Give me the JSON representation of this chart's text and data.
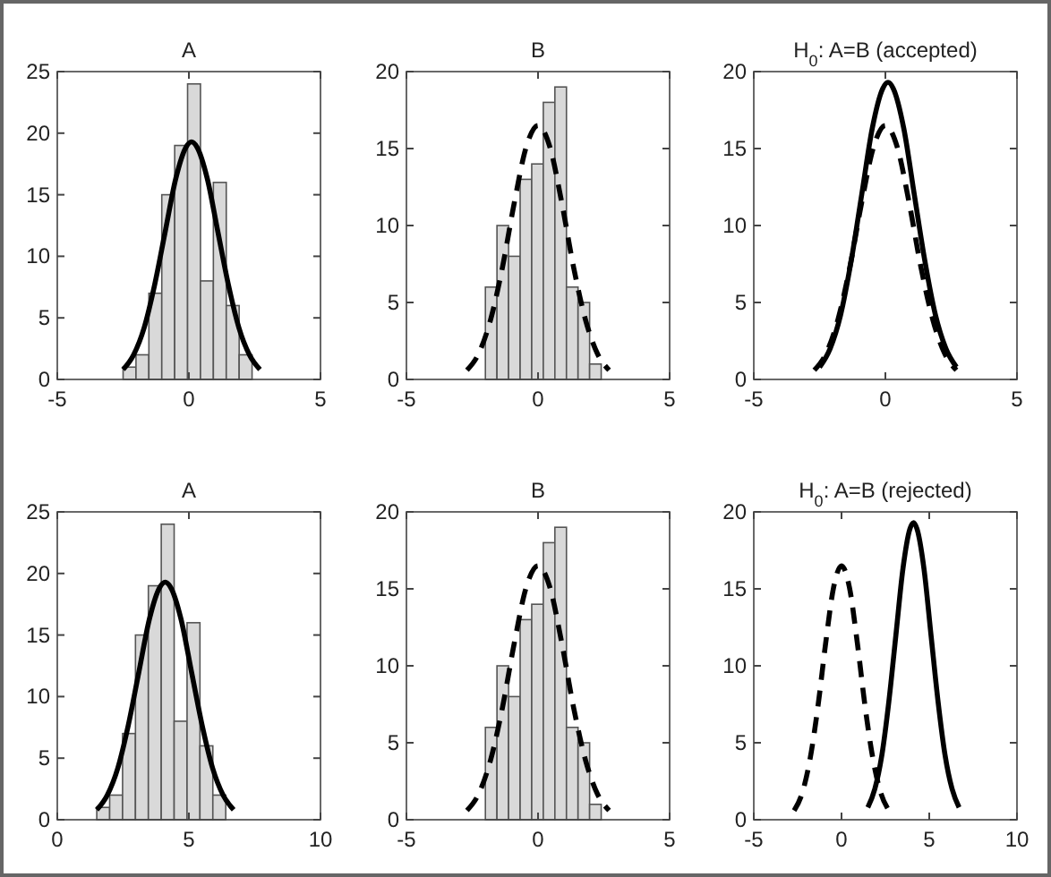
{
  "chart_data": [
    {
      "type": "histogram",
      "title": "A",
      "xlim": [
        -5,
        5
      ],
      "xticks": [
        -5,
        0,
        5
      ],
      "ylim": [
        0,
        25
      ],
      "yticks": [
        0,
        5,
        10,
        15,
        20,
        25
      ],
      "series": [
        {
          "color": "#d9d9d9",
          "bins": [
            -2.5,
            -2.01,
            -1.52,
            -1.03,
            -0.54,
            -0.05,
            0.44,
            0.93,
            1.42,
            1.91,
            2.4
          ],
          "values": [
            1,
            2,
            7,
            15,
            19,
            24,
            8,
            16,
            6,
            2
          ]
        },
        {
          "type": "line",
          "color": "#000000",
          "line_style": "solid",
          "x": [
            -2.5,
            -2.1,
            -1.7,
            -1.3,
            -0.9,
            -0.5,
            -0.1,
            0.1,
            0.3,
            0.7,
            1.1,
            1.5,
            1.9,
            2.3,
            2.7
          ],
          "values": [
            0.8,
            2.0,
            4.2,
            7.7,
            12.0,
            16.3,
            18.9,
            19.3,
            18.9,
            16.3,
            12.0,
            7.7,
            4.2,
            2.0,
            0.8
          ]
        }
      ]
    },
    {
      "type": "histogram",
      "title": "B",
      "xlim": [
        -5,
        5
      ],
      "xticks": [
        -5,
        0,
        5
      ],
      "ylim": [
        0,
        20
      ],
      "yticks": [
        0,
        5,
        10,
        15,
        20
      ],
      "series": [
        {
          "color": "#d9d9d9",
          "bins": [
            -2.0,
            -1.56,
            -1.12,
            -0.68,
            -0.24,
            0.2,
            0.64,
            1.08,
            1.52,
            1.96,
            2.4
          ],
          "values": [
            6,
            10,
            8,
            13,
            14,
            18,
            19,
            6,
            5,
            1
          ]
        },
        {
          "type": "line",
          "color": "#000000",
          "line_style": "dashed",
          "x": [
            -2.7,
            -2.25,
            -1.8,
            -1.35,
            -0.9,
            -0.45,
            0,
            0.45,
            0.9,
            1.35,
            1.8,
            2.25,
            2.7
          ],
          "values": [
            0.6,
            1.7,
            3.9,
            7.3,
            11.5,
            15.1,
            16.5,
            15.1,
            11.5,
            7.3,
            3.9,
            1.7,
            0.6
          ]
        }
      ]
    },
    {
      "type": "line",
      "title": "H$_{0}$: A=B (accepted)",
      "xlim": [
        -5,
        5
      ],
      "xticks": [
        -5,
        0,
        5
      ],
      "ylim": [
        0,
        20
      ],
      "yticks": [
        0,
        5,
        10,
        15,
        20
      ],
      "series": [
        {
          "color": "#000000",
          "line_style": "solid",
          "x": [
            -2.5,
            -2.1,
            -1.7,
            -1.3,
            -0.9,
            -0.5,
            -0.1,
            0.1,
            0.3,
            0.7,
            1.1,
            1.5,
            1.9,
            2.3,
            2.7
          ],
          "values": [
            0.8,
            2.0,
            4.2,
            7.7,
            12.0,
            16.3,
            18.9,
            19.3,
            18.9,
            16.3,
            12.0,
            7.7,
            4.2,
            2.0,
            0.8
          ]
        },
        {
          "color": "#000000",
          "line_style": "dashed",
          "x": [
            -2.7,
            -2.25,
            -1.8,
            -1.35,
            -0.9,
            -0.45,
            0,
            0.45,
            0.9,
            1.35,
            1.8,
            2.25,
            2.7
          ],
          "values": [
            0.6,
            1.7,
            3.9,
            7.3,
            11.5,
            15.1,
            16.5,
            15.1,
            11.5,
            7.3,
            3.9,
            1.7,
            0.6
          ]
        }
      ]
    },
    {
      "type": "histogram",
      "title": "A",
      "xlim": [
        0,
        10
      ],
      "xticks": [
        0,
        5,
        10
      ],
      "ylim": [
        0,
        25
      ],
      "yticks": [
        0,
        5,
        10,
        15,
        20,
        25
      ],
      "series": [
        {
          "color": "#d9d9d9",
          "bins": [
            1.5,
            1.99,
            2.48,
            2.97,
            3.46,
            3.95,
            4.44,
            4.93,
            5.42,
            5.91,
            6.4
          ],
          "values": [
            1,
            2,
            7,
            15,
            19,
            24,
            8,
            16,
            6,
            2
          ]
        },
        {
          "type": "line",
          "color": "#000000",
          "line_style": "solid",
          "x": [
            1.5,
            1.9,
            2.3,
            2.7,
            3.1,
            3.5,
            3.9,
            4.1,
            4.3,
            4.7,
            5.1,
            5.5,
            5.9,
            6.3,
            6.7
          ],
          "values": [
            0.8,
            2.0,
            4.2,
            7.7,
            12.0,
            16.3,
            18.9,
            19.3,
            18.9,
            16.3,
            12.0,
            7.7,
            4.2,
            2.0,
            0.8
          ]
        }
      ]
    },
    {
      "type": "histogram",
      "title": "B",
      "xlim": [
        -5,
        5
      ],
      "xticks": [
        -5,
        0,
        5
      ],
      "ylim": [
        0,
        20
      ],
      "yticks": [
        0,
        5,
        10,
        15,
        20
      ],
      "series": [
        {
          "color": "#d9d9d9",
          "bins": [
            -2.0,
            -1.56,
            -1.12,
            -0.68,
            -0.24,
            0.2,
            0.64,
            1.08,
            1.52,
            1.96,
            2.4
          ],
          "values": [
            6,
            10,
            8,
            13,
            14,
            18,
            19,
            6,
            5,
            1
          ]
        },
        {
          "type": "line",
          "color": "#000000",
          "line_style": "dashed",
          "x": [
            -2.7,
            -2.25,
            -1.8,
            -1.35,
            -0.9,
            -0.45,
            0,
            0.45,
            0.9,
            1.35,
            1.8,
            2.25,
            2.7
          ],
          "values": [
            0.6,
            1.7,
            3.9,
            7.3,
            11.5,
            15.1,
            16.5,
            15.1,
            11.5,
            7.3,
            3.9,
            1.7,
            0.6
          ]
        }
      ]
    },
    {
      "type": "line",
      "title": "H$_{0}$: A=B (rejected)",
      "xlim": [
        -5,
        10
      ],
      "xticks": [
        -5,
        0,
        5,
        10
      ],
      "ylim": [
        0,
        20
      ],
      "yticks": [
        0,
        5,
        10,
        15,
        20
      ],
      "series": [
        {
          "color": "#000000",
          "line_style": "solid",
          "x": [
            1.5,
            1.9,
            2.3,
            2.7,
            3.1,
            3.5,
            3.9,
            4.1,
            4.3,
            4.7,
            5.1,
            5.5,
            5.9,
            6.3,
            6.7
          ],
          "values": [
            0.8,
            2.0,
            4.2,
            7.7,
            12.0,
            16.3,
            18.9,
            19.3,
            18.9,
            16.3,
            12.0,
            7.7,
            4.2,
            2.0,
            0.8
          ]
        },
        {
          "color": "#000000",
          "line_style": "dashed",
          "x": [
            -2.7,
            -2.25,
            -1.8,
            -1.35,
            -0.9,
            -0.45,
            0,
            0.45,
            0.9,
            1.35,
            1.8,
            2.25,
            2.7
          ],
          "values": [
            0.6,
            1.7,
            3.9,
            7.3,
            11.5,
            15.1,
            16.5,
            15.1,
            11.5,
            7.3,
            3.9,
            1.7,
            0.6
          ]
        }
      ]
    }
  ]
}
